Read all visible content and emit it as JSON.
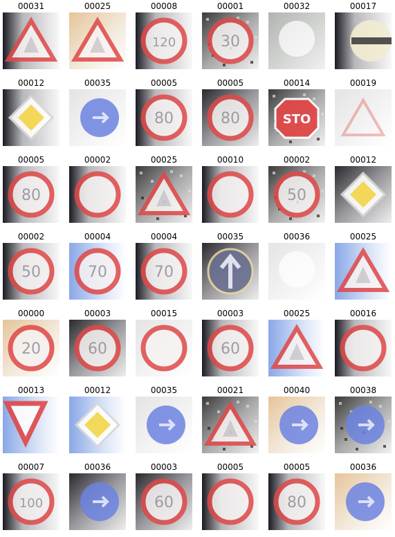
{
  "grid": {
    "rows": [
      [
        {
          "label": "00031",
          "sign": "triangle",
          "text": "",
          "bg": "dark-left"
        },
        {
          "label": "00025",
          "sign": "triangle",
          "text": "",
          "bg": "warm"
        },
        {
          "label": "00008",
          "sign": "round-speed",
          "text": "120",
          "bg": "dark-left"
        },
        {
          "label": "00001",
          "sign": "round-speed",
          "text": "30",
          "bg": "noisy"
        },
        {
          "label": "00032",
          "sign": "white-blur",
          "text": "",
          "bg": "grey"
        },
        {
          "label": "00017",
          "sign": "no-entry",
          "text": "",
          "bg": "dark-left"
        }
      ],
      [
        {
          "label": "00012",
          "sign": "diamond",
          "text": "",
          "bg": "dark-left"
        },
        {
          "label": "00035",
          "sign": "blue-round",
          "text": "",
          "bg": "light"
        },
        {
          "label": "00005",
          "sign": "round-speed",
          "text": "80",
          "bg": "dark-left"
        },
        {
          "label": "00005",
          "sign": "round-speed",
          "text": "80",
          "bg": "dark"
        },
        {
          "label": "00014",
          "sign": "stop",
          "text": "STO",
          "bg": "noisy"
        },
        {
          "label": "00019",
          "sign": "triangle-faint",
          "text": "",
          "bg": "light"
        }
      ],
      [
        {
          "label": "00005",
          "sign": "round-speed",
          "text": "80",
          "bg": "dark-left"
        },
        {
          "label": "00002",
          "sign": "round-speed",
          "text": "",
          "bg": "dark-left"
        },
        {
          "label": "00025",
          "sign": "triangle",
          "text": "",
          "bg": "noisy"
        },
        {
          "label": "00010",
          "sign": "round-speed",
          "text": "",
          "bg": "dark-left"
        },
        {
          "label": "00002",
          "sign": "round-speed",
          "text": "50",
          "bg": "noisy"
        },
        {
          "label": "00012",
          "sign": "diamond",
          "text": "",
          "bg": "dark"
        }
      ],
      [
        {
          "label": "00002",
          "sign": "round-speed",
          "text": "50",
          "bg": "dark-left"
        },
        {
          "label": "00004",
          "sign": "round-speed",
          "text": "70",
          "bg": "blue-sky"
        },
        {
          "label": "00004",
          "sign": "round-speed",
          "text": "70",
          "bg": "dark-left"
        },
        {
          "label": "00035",
          "sign": "blue-arrow",
          "text": "",
          "bg": "dark"
        },
        {
          "label": "00036",
          "sign": "white-blur",
          "text": "",
          "bg": "light"
        },
        {
          "label": "00025",
          "sign": "triangle",
          "text": "",
          "bg": "blue-sky"
        }
      ],
      [
        {
          "label": "00000",
          "sign": "round-speed",
          "text": "20",
          "bg": "warm"
        },
        {
          "label": "00003",
          "sign": "round-speed",
          "text": "60",
          "bg": "dark"
        },
        {
          "label": "00015",
          "sign": "round-speed",
          "text": "",
          "bg": "light"
        },
        {
          "label": "00003",
          "sign": "round-speed",
          "text": "60",
          "bg": "dark-left"
        },
        {
          "label": "00025",
          "sign": "triangle",
          "text": "",
          "bg": "blue-sky"
        },
        {
          "label": "00016",
          "sign": "round-speed",
          "text": "",
          "bg": "dark-left"
        }
      ],
      [
        {
          "label": "00013",
          "sign": "yield",
          "text": "",
          "bg": "blue-sky"
        },
        {
          "label": "00012",
          "sign": "diamond",
          "text": "",
          "bg": "blue-sky"
        },
        {
          "label": "00035",
          "sign": "blue-round",
          "text": "",
          "bg": "light"
        },
        {
          "label": "00021",
          "sign": "triangle",
          "text": "",
          "bg": "noisy"
        },
        {
          "label": "00040",
          "sign": "blue-round",
          "text": "",
          "bg": "warm"
        },
        {
          "label": "00038",
          "sign": "blue-round",
          "text": "",
          "bg": "noisy"
        }
      ],
      [
        {
          "label": "00007",
          "sign": "round-speed",
          "text": "100",
          "bg": "dark-left"
        },
        {
          "label": "00036",
          "sign": "blue-round",
          "text": "",
          "bg": "dark"
        },
        {
          "label": "00003",
          "sign": "round-speed",
          "text": "60",
          "bg": "dark"
        },
        {
          "label": "00005",
          "sign": "round-speed",
          "text": "",
          "bg": "dark-left"
        },
        {
          "label": "00005",
          "sign": "round-speed",
          "text": "80",
          "bg": "dark-left"
        },
        {
          "label": "00036",
          "sign": "blue-round",
          "text": "",
          "bg": "warm"
        }
      ]
    ]
  },
  "colors": {
    "red": "#e04848",
    "blue": "#6c82e0",
    "yellow": "#f2d23c"
  }
}
